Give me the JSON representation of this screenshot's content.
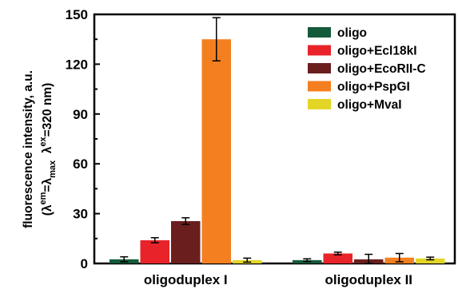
{
  "chart_data": {
    "type": "bar",
    "categories": [
      "oligoduplex I",
      "oligoduplex II"
    ],
    "series": [
      {
        "name": "oligo",
        "color": "#145a3a",
        "values": [
          2.5,
          2.0
        ],
        "errors": [
          1.5,
          0.8
        ]
      },
      {
        "name": "oligo+Ecl18kI",
        "color": "#e8232a",
        "values": [
          14.0,
          6.0
        ],
        "errors": [
          1.5,
          0.8
        ]
      },
      {
        "name": "oligo+EcoRII-C",
        "color": "#6b1e1e",
        "values": [
          25.5,
          2.5
        ],
        "errors": [
          2.0,
          3.0
        ]
      },
      {
        "name": "oligo+PspGI",
        "color": "#f47f20",
        "values": [
          135.0,
          3.5
        ],
        "errors": [
          13.0,
          2.5
        ]
      },
      {
        "name": "oligo+MvaI",
        "color": "#e3d526",
        "values": [
          2.0,
          3.0
        ],
        "errors": [
          1.2,
          0.8
        ]
      }
    ],
    "ylabel_line1": "fluorescence intensity, a.u.",
    "ylabel_line2": {
      "open": "(λ",
      "em_sup": "em",
      "eq": "=λ",
      "max_sub": "max",
      "gap": "  λ",
      "ex_sup": "ex",
      "tail": "=320 nm)"
    },
    "yticks": [
      "0",
      "30",
      "60",
      "90",
      "120",
      "150"
    ],
    "ylim": [
      0,
      150
    ],
    "legend_position": "top-right",
    "grid": false
  }
}
